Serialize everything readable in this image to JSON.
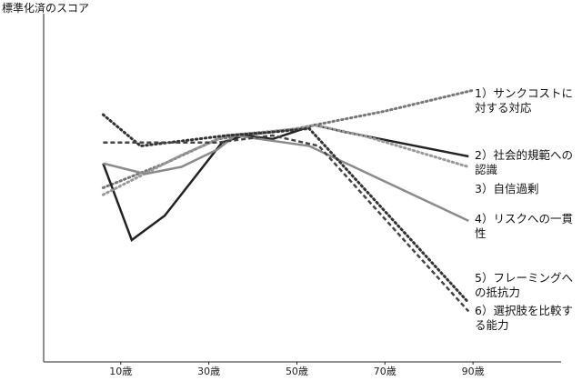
{
  "chart_data": {
    "type": "line",
    "ylabel": "標準化済のスコア",
    "xlim": [
      -7.5,
      110
    ],
    "ylim": [
      0,
      100
    ],
    "xticks": [
      {
        "value": 10,
        "label": "10歳"
      },
      {
        "value": 30,
        "label": "30歳"
      },
      {
        "value": 50,
        "label": "50歳"
      },
      {
        "value": 70,
        "label": "70歳"
      },
      {
        "value": 90,
        "label": "90歳"
      }
    ],
    "series": [
      {
        "name": "1）サンクコストに対する対応",
        "color": "#777777",
        "style": "dotted",
        "width": 3,
        "x": [
          6,
          20,
          32,
          50,
          70,
          90
        ],
        "values": [
          50,
          57,
          64,
          67,
          72,
          78
        ]
      },
      {
        "name": "2）社会的規範への認識",
        "color": "#222222",
        "style": "solid",
        "width": 2.5,
        "x": [
          6,
          12.5,
          20,
          33,
          38,
          44.5,
          54,
          61,
          89
        ],
        "values": [
          57,
          35,
          42,
          63,
          65,
          64,
          68,
          66,
          59
        ]
      },
      {
        "name": "3）自信過剰",
        "color": "#999999",
        "style": "dotted",
        "width": 3,
        "x": [
          6,
          24,
          34,
          50.7,
          54,
          65,
          89
        ],
        "values": [
          48,
          59.5,
          65,
          67,
          68,
          65,
          56
        ]
      },
      {
        "name": "4）リスクへの一貫性",
        "color": "#8a8a8a",
        "style": "solid",
        "width": 2.5,
        "x": [
          6,
          15.6,
          23.8,
          32,
          36,
          52.8,
          89
        ],
        "values": [
          57,
          54,
          56,
          61,
          65,
          62,
          40.5
        ]
      },
      {
        "name": "5）フレーミングへの抵抗力",
        "color": "#333333",
        "style": "dotted",
        "width": 3,
        "x": [
          6,
          14.5,
          34,
          44.5,
          52.8,
          89
        ],
        "values": [
          71,
          62,
          65,
          66,
          67,
          17
        ]
      },
      {
        "name": "6）選択肢を比較する能力",
        "color": "#444444",
        "style": "dashed",
        "width": 2.5,
        "x": [
          6,
          32,
          44.5,
          55,
          89
        ],
        "values": [
          63,
          63,
          65,
          62,
          14.5
        ]
      }
    ]
  }
}
